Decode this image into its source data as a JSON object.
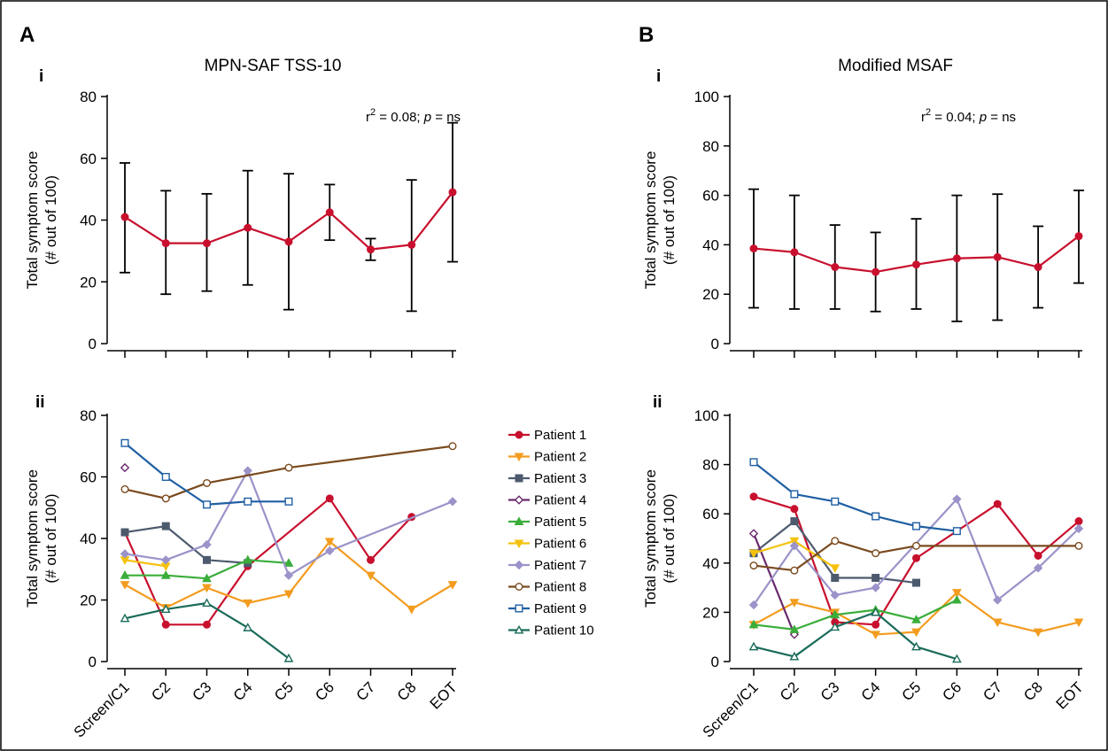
{
  "chart_data": [
    {
      "id": "A-i",
      "type": "line",
      "panel": "A",
      "subpanel": "i",
      "title": "MPN-SAF TSS-10",
      "ylabel_lines": [
        "Total symptom score",
        "(# out of 100)"
      ],
      "ylim": [
        0,
        80
      ],
      "yticks": [
        0,
        20,
        40,
        60,
        80
      ],
      "categories": [
        "Screen/C1",
        "C2",
        "C3",
        "C4",
        "C5",
        "C6",
        "C7",
        "C8",
        "EOT"
      ],
      "annotation": {
        "r2_prefix": "r",
        "r2_sup": "2",
        "r2_value": " = 0.08; ",
        "p_symbol": "p",
        "p_value": " = ns"
      },
      "series": [
        {
          "color": "#c8102e",
          "marker": "circle",
          "values": [
            41,
            32.5,
            32.5,
            37.5,
            33,
            42.5,
            30.5,
            32,
            49
          ],
          "error_low": [
            23,
            16,
            17,
            19,
            11,
            33.5,
            27,
            10.5,
            26.5
          ],
          "error_high": [
            58.5,
            49.5,
            48.5,
            56,
            55,
            51.5,
            34,
            53,
            71.5
          ]
        }
      ]
    },
    {
      "id": "B-i",
      "type": "line",
      "panel": "B",
      "subpanel": "i",
      "title": "Modified MSAF",
      "ylabel_lines": [
        "Total symptom score",
        "(# out of 100)"
      ],
      "ylim": [
        0,
        100
      ],
      "yticks": [
        0,
        20,
        40,
        60,
        80,
        100
      ],
      "categories": [
        "Screen/C1",
        "C2",
        "C3",
        "C4",
        "C5",
        "C6",
        "C7",
        "C8",
        "EOT"
      ],
      "annotation": {
        "r2_prefix": "r",
        "r2_sup": "2",
        "r2_value": " = 0.04; ",
        "p_symbol": "p",
        "p_value": " = ns"
      },
      "series": [
        {
          "color": "#c8102e",
          "marker": "circle",
          "values": [
            38.5,
            37,
            31,
            29,
            32,
            34.5,
            35,
            31,
            43.5
          ],
          "error_low": [
            14.5,
            14,
            14,
            13,
            14,
            9,
            9.5,
            14.5,
            24.5
          ],
          "error_high": [
            62.5,
            60,
            48,
            45,
            50.5,
            60,
            60.5,
            47.5,
            62
          ]
        }
      ]
    },
    {
      "id": "A-ii",
      "type": "line",
      "panel": "A",
      "subpanel": "ii",
      "ylabel_lines": [
        "Total symptom score",
        "(# out of 100)"
      ],
      "ylim": [
        0,
        80
      ],
      "yticks": [
        0,
        20,
        40,
        60,
        80
      ],
      "categories": [
        "Screen/C1",
        "C2",
        "C3",
        "C4",
        "C5",
        "C6",
        "C7",
        "C8",
        "EOT"
      ],
      "series": [
        {
          "name": "Patient 1",
          "color": "#c8102e",
          "marker": "circle",
          "values": [
            42,
            12,
            12,
            31,
            null,
            53,
            33,
            47,
            null
          ]
        },
        {
          "name": "Patient 2",
          "color": "#f39c1f",
          "marker": "triangle-down",
          "values": [
            25,
            17.5,
            24,
            19,
            22,
            39,
            28,
            17,
            25
          ]
        },
        {
          "name": "Patient 3",
          "color": "#4d5a6e",
          "marker": "square",
          "values": [
            42,
            44,
            33,
            32,
            null,
            null,
            null,
            null,
            null
          ]
        },
        {
          "name": "Patient 4",
          "color": "#6b2a6e",
          "marker": "diamond-open",
          "values": [
            63,
            null,
            null,
            null,
            null,
            null,
            null,
            null,
            null
          ]
        },
        {
          "name": "Patient 5",
          "color": "#3aad3a",
          "marker": "triangle-up",
          "values": [
            28,
            28,
            27,
            33,
            32,
            null,
            null,
            null,
            null
          ]
        },
        {
          "name": "Patient 6",
          "color": "#f4c20d",
          "marker": "triangle-down",
          "values": [
            33,
            31,
            null,
            null,
            null,
            null,
            null,
            null,
            null
          ]
        },
        {
          "name": "Patient 7",
          "color": "#9b93c9",
          "marker": "diamond",
          "values": [
            35,
            33,
            38,
            62,
            28,
            36,
            null,
            null,
            52
          ]
        },
        {
          "name": "Patient 8",
          "color": "#7a4a1e",
          "marker": "circle-open",
          "values": [
            56,
            53,
            58,
            null,
            63,
            null,
            null,
            null,
            70
          ]
        },
        {
          "name": "Patient 9",
          "color": "#1f5fa3",
          "marker": "square-open",
          "values": [
            71,
            60,
            51,
            52,
            52,
            null,
            null,
            null,
            null
          ]
        },
        {
          "name": "Patient 10",
          "color": "#1a6b5a",
          "marker": "triangle-open",
          "values": [
            14,
            17,
            19,
            11,
            1,
            null,
            null,
            null,
            null
          ]
        }
      ],
      "legend": [
        "Patient 1",
        "Patient 2",
        "Patient 3",
        "Patient 4",
        "Patient 5",
        "Patient 6",
        "Patient 7",
        "Patient 8",
        "Patient 9",
        "Patient 10"
      ]
    },
    {
      "id": "B-ii",
      "type": "line",
      "panel": "B",
      "subpanel": "ii",
      "ylabel_lines": [
        "Total symptom score",
        "(# out of 100)"
      ],
      "ylim": [
        0,
        100
      ],
      "yticks": [
        0,
        20,
        40,
        60,
        80,
        100
      ],
      "categories": [
        "Screen/C1",
        "C2",
        "C3",
        "C4",
        "C5",
        "C6",
        "C7",
        "C8",
        "EOT"
      ],
      "series": [
        {
          "name": "Patient 1",
          "color": "#c8102e",
          "marker": "circle",
          "values": [
            67,
            62,
            16,
            15,
            42,
            null,
            64,
            43,
            57
          ]
        },
        {
          "name": "Patient 2",
          "color": "#f39c1f",
          "marker": "triangle-down",
          "values": [
            15,
            24,
            20,
            11,
            12,
            28,
            16,
            12,
            16
          ]
        },
        {
          "name": "Patient 3",
          "color": "#4d5a6e",
          "marker": "square",
          "values": [
            44,
            57,
            34,
            34,
            32,
            null,
            null,
            null,
            null
          ]
        },
        {
          "name": "Patient 4",
          "color": "#6b2a6e",
          "marker": "diamond-open",
          "values": [
            52,
            11,
            null,
            null,
            null,
            null,
            null,
            null,
            null
          ]
        },
        {
          "name": "Patient 5",
          "color": "#3aad3a",
          "marker": "triangle-up",
          "values": [
            15,
            13,
            19,
            21,
            17,
            25,
            null,
            null,
            null
          ]
        },
        {
          "name": "Patient 6",
          "color": "#f4c20d",
          "marker": "triangle-down",
          "values": [
            44,
            49,
            38,
            null,
            null,
            null,
            null,
            null,
            null
          ]
        },
        {
          "name": "Patient 7",
          "color": "#9b93c9",
          "marker": "diamond",
          "values": [
            23,
            47,
            27,
            30,
            null,
            66,
            25,
            38,
            54
          ]
        },
        {
          "name": "Patient 8",
          "color": "#7a4a1e",
          "marker": "circle-open",
          "values": [
            39,
            37,
            49,
            44,
            47,
            null,
            null,
            null,
            47
          ]
        },
        {
          "name": "Patient 9",
          "color": "#1f5fa3",
          "marker": "square-open",
          "values": [
            81,
            68,
            65,
            59,
            55,
            53,
            null,
            null,
            null
          ]
        },
        {
          "name": "Patient 10",
          "color": "#1a6b5a",
          "marker": "triangle-open",
          "values": [
            6,
            2,
            14,
            20,
            6,
            1,
            null,
            null,
            null
          ]
        }
      ]
    }
  ],
  "panel_letters": {
    "a": "A",
    "b": "B"
  },
  "subpanel_labels": {
    "a_i": "i",
    "a_ii": "ii",
    "b_i": "i",
    "b_ii": "ii"
  }
}
